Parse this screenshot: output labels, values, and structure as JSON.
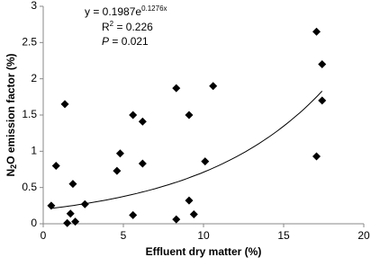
{
  "chart_data": {
    "type": "scatter",
    "x_label": "Effluent dry matter (%)",
    "y_label": {
      "main": "N",
      "sub": "2",
      "rest": "O emission factor (%)"
    },
    "equation": {
      "base": "y = 0.1987e",
      "exponent": "0.1276x"
    },
    "r2": {
      "base": "R",
      "sup": "2",
      "rest": " = 0.226"
    },
    "p_value": {
      "symbol": "P",
      "rest": " = 0.021"
    },
    "trendline": {
      "a": 0.1987,
      "b": 0.1276
    },
    "color": "#000000",
    "x": [
      0.5,
      0.8,
      1.35,
      1.5,
      1.7,
      1.85,
      2.0,
      2.6,
      4.6,
      4.8,
      5.6,
      5.6,
      6.2,
      6.2,
      8.3,
      8.3,
      9.1,
      9.1,
      9.4,
      10.1,
      10.6,
      17.05,
      17.4,
      17.4,
      17.05
    ],
    "values": [
      0.25,
      0.8,
      1.65,
      0.01,
      0.14,
      0.55,
      0.03,
      0.27,
      0.73,
      0.97,
      1.5,
      0.12,
      1.41,
      0.83,
      1.87,
      0.06,
      1.5,
      0.32,
      0.13,
      0.86,
      1.9,
      2.65,
      2.2,
      1.7,
      0.93
    ],
    "xlim": [
      0,
      20
    ],
    "xticks": [
      0,
      5,
      10,
      15,
      20
    ],
    "ylim": [
      0,
      3
    ],
    "yticks": [
      0,
      0.5,
      1,
      1.5,
      2,
      2.5,
      3
    ],
    "grid": false
  }
}
